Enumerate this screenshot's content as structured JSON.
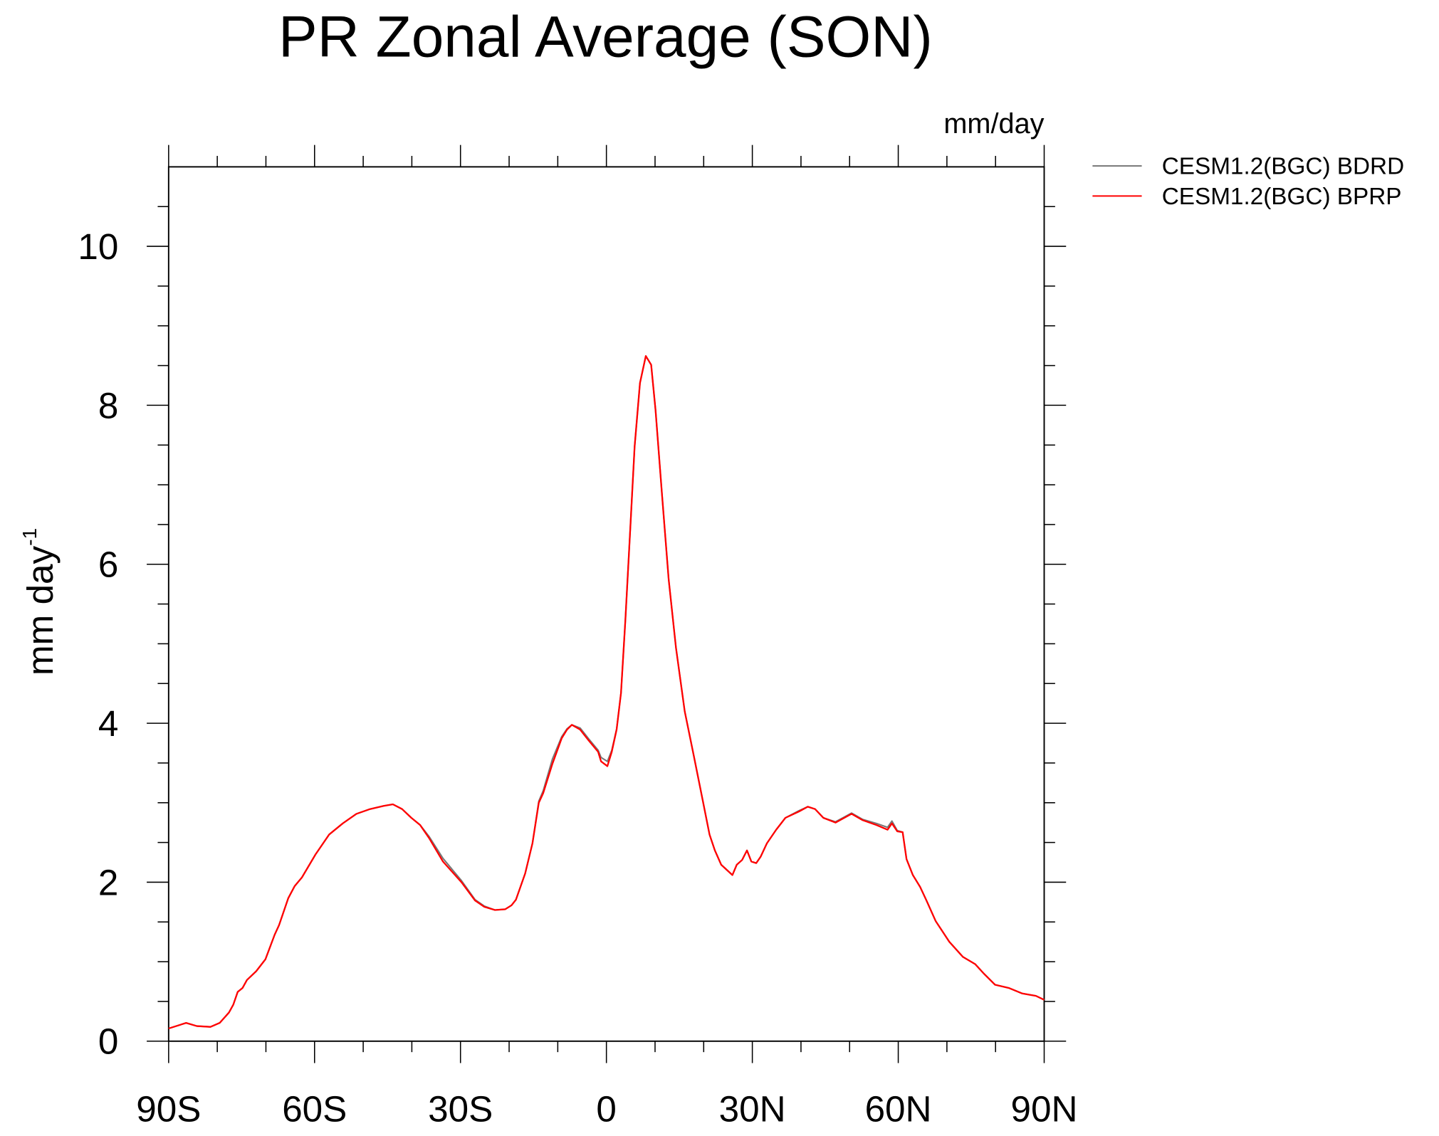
{
  "chart_data": {
    "type": "line",
    "title": "PR Zonal Average (SON)",
    "units": "mm/day",
    "ylabel": {
      "text": "mm day",
      "superscript": "-1"
    },
    "xlim": [
      -90,
      90
    ],
    "xticks": [
      {
        "value": -90,
        "label": "90S"
      },
      {
        "value": -60,
        "label": "60S"
      },
      {
        "value": -30,
        "label": "30S"
      },
      0,
      {
        "value": 30,
        "label": "30N"
      },
      {
        "value": 60,
        "label": "60N"
      },
      {
        "value": 90,
        "label": "90N"
      }
    ],
    "xminorticks": [
      -80,
      -70,
      -50,
      -40,
      -20,
      -10,
      10,
      20,
      40,
      50,
      70,
      80
    ],
    "ylim": [
      0,
      11
    ],
    "yticks": [
      0,
      2,
      4,
      6,
      8,
      10
    ],
    "yminorticks": [
      0.5,
      1,
      1.5,
      2.5,
      3,
      3.5,
      4.5,
      5,
      5.5,
      6.5,
      7,
      7.5,
      8.5,
      9,
      9.5,
      10.5
    ],
    "x": [
      -90,
      -86.4,
      -84.2,
      -81.4,
      -79.5,
      -77.6,
      -76.7,
      -75.8,
      -74.8,
      -73.9,
      -72,
      -70.1,
      -68.2,
      -67.3,
      -65.4,
      -64.1,
      -62.6,
      -59.8,
      -57,
      -54.2,
      -51.4,
      -48.6,
      -45.8,
      -43.9,
      -42,
      -40.1,
      -38.3,
      -36.4,
      -33.6,
      -29.8,
      -27,
      -25.1,
      -22.9,
      -20.8,
      -19.5,
      -18.6,
      -16.7,
      -15.2,
      -13.9,
      -13,
      -11.1,
      -9.2,
      -8.1,
      -7.1,
      -5.4,
      -3.6,
      -1.7,
      -1.1,
      0.2,
      1.1,
      2.1,
      3,
      3.9,
      4.9,
      5.8,
      6.9,
      8.1,
      9.2,
      10.1,
      11.4,
      12.8,
      14.3,
      16.1,
      18,
      19.9,
      21.2,
      22.3,
      23.6,
      25.9,
      26.8,
      27.9,
      28.9,
      29.8,
      30.8,
      31.7,
      33,
      34.9,
      36.8,
      39.6,
      41.4,
      42.9,
      44.6,
      47.1,
      48.9,
      50.4,
      52.7,
      55.5,
      57.8,
      58.7,
      59.8,
      60.9,
      61.7,
      63,
      64.5,
      65.8,
      67.7,
      70.5,
      73.3,
      75.8,
      77.6,
      79.9,
      82.7,
      85.5,
      88.3,
      90
    ],
    "series": [
      {
        "name": "CESM1.2(BGC) BDRD",
        "color": "#777777",
        "values": [
          0.16,
          0.23,
          0.19,
          0.18,
          0.23,
          0.36,
          0.46,
          0.62,
          0.67,
          0.77,
          0.88,
          1.03,
          1.34,
          1.46,
          1.8,
          1.95,
          2.06,
          2.35,
          2.6,
          2.74,
          2.86,
          2.92,
          2.96,
          2.98,
          2.92,
          2.81,
          2.72,
          2.57,
          2.3,
          2.02,
          1.78,
          1.7,
          1.65,
          1.66,
          1.71,
          1.78,
          2.11,
          2.49,
          3.02,
          3.15,
          3.55,
          3.83,
          3.93,
          3.98,
          3.94,
          3.8,
          3.66,
          3.57,
          3.52,
          3.66,
          3.93,
          4.38,
          5.3,
          6.44,
          7.48,
          8.28,
          8.62,
          8.51,
          7.94,
          6.9,
          5.81,
          4.95,
          4.15,
          3.58,
          3.0,
          2.6,
          2.4,
          2.22,
          2.09,
          2.22,
          2.28,
          2.4,
          2.26,
          2.24,
          2.32,
          2.49,
          2.66,
          2.81,
          2.9,
          2.95,
          2.92,
          2.81,
          2.76,
          2.82,
          2.87,
          2.79,
          2.74,
          2.69,
          2.77,
          2.65,
          2.63,
          2.29,
          2.09,
          1.94,
          1.77,
          1.51,
          1.25,
          1.06,
          0.97,
          0.85,
          0.71,
          0.67,
          0.6,
          0.57,
          0.52
        ]
      },
      {
        "name": "CESM1.2(BGC) BPRP",
        "color": "#ff0000",
        "values": [
          0.16,
          0.23,
          0.19,
          0.18,
          0.23,
          0.36,
          0.46,
          0.62,
          0.67,
          0.77,
          0.88,
          1.03,
          1.34,
          1.46,
          1.8,
          1.95,
          2.06,
          2.35,
          2.6,
          2.74,
          2.86,
          2.92,
          2.96,
          2.98,
          2.92,
          2.81,
          2.72,
          2.55,
          2.26,
          2.0,
          1.77,
          1.69,
          1.65,
          1.66,
          1.71,
          1.78,
          2.11,
          2.49,
          3.0,
          3.12,
          3.49,
          3.81,
          3.92,
          3.98,
          3.92,
          3.78,
          3.64,
          3.52,
          3.46,
          3.64,
          3.92,
          4.38,
          5.3,
          6.44,
          7.48,
          8.28,
          8.62,
          8.51,
          7.94,
          6.9,
          5.81,
          4.95,
          4.15,
          3.58,
          3.0,
          2.6,
          2.4,
          2.22,
          2.09,
          2.22,
          2.28,
          2.4,
          2.26,
          2.24,
          2.32,
          2.49,
          2.66,
          2.81,
          2.89,
          2.95,
          2.92,
          2.81,
          2.75,
          2.81,
          2.86,
          2.78,
          2.72,
          2.66,
          2.74,
          2.64,
          2.63,
          2.29,
          2.09,
          1.94,
          1.77,
          1.51,
          1.25,
          1.06,
          0.97,
          0.85,
          0.71,
          0.67,
          0.6,
          0.57,
          0.52
        ]
      }
    ]
  }
}
